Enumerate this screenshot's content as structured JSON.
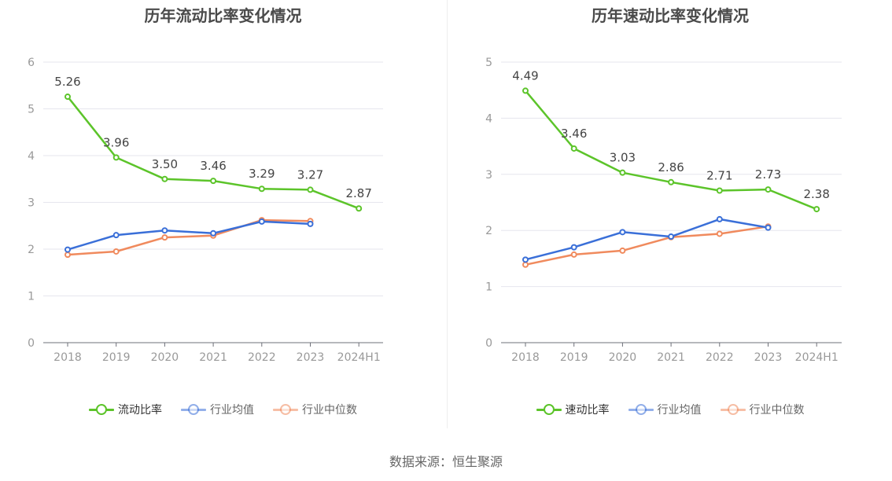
{
  "source": "数据来源：恒生聚源",
  "colors": {
    "main": "#5cc42a",
    "avg": "#3a6fd8",
    "median": "#f08a5d"
  },
  "chart_data": [
    {
      "type": "line",
      "title": "历年流动比率变化情况",
      "categories": [
        "2018",
        "2019",
        "2020",
        "2021",
        "2022",
        "2023",
        "2024H1"
      ],
      "ylim": [
        0,
        6
      ],
      "yticks": [
        0,
        1,
        2,
        3,
        4,
        5,
        6
      ],
      "grid": true,
      "legend_position": "bottom",
      "series": [
        {
          "name": "流动比率",
          "color": "#5cc42a",
          "labeled": true,
          "values": [
            5.26,
            3.96,
            3.5,
            3.46,
            3.29,
            3.27,
            2.87
          ],
          "labels": [
            "5.26",
            "3.96",
            "3.50",
            "3.46",
            "3.29",
            "3.27",
            "2.87"
          ]
        },
        {
          "name": "行业均值",
          "color": "#3a6fd8",
          "labeled": false,
          "values": [
            1.99,
            2.3,
            2.4,
            2.34,
            2.59,
            2.54,
            null
          ]
        },
        {
          "name": "行业中位数",
          "color": "#f08a5d",
          "labeled": false,
          "values": [
            1.88,
            1.95,
            2.25,
            2.29,
            2.62,
            2.6,
            null
          ]
        }
      ]
    },
    {
      "type": "line",
      "title": "历年速动比率变化情况",
      "categories": [
        "2018",
        "2019",
        "2020",
        "2021",
        "2022",
        "2023",
        "2024H1"
      ],
      "ylim": [
        0,
        5
      ],
      "yticks": [
        0,
        1,
        2,
        3,
        4,
        5
      ],
      "grid": true,
      "legend_position": "bottom",
      "series": [
        {
          "name": "速动比率",
          "color": "#5cc42a",
          "labeled": true,
          "values": [
            4.49,
            3.46,
            3.03,
            2.86,
            2.71,
            2.73,
            2.38
          ],
          "labels": [
            "4.49",
            "3.46",
            "3.03",
            "2.86",
            "2.71",
            "2.73",
            "2.38"
          ]
        },
        {
          "name": "行业均值",
          "color": "#3a6fd8",
          "labeled": false,
          "values": [
            1.48,
            1.7,
            1.97,
            1.89,
            2.2,
            2.05,
            null
          ]
        },
        {
          "name": "行业中位数",
          "color": "#f08a5d",
          "labeled": false,
          "values": [
            1.39,
            1.57,
            1.64,
            1.88,
            1.94,
            2.07,
            null
          ]
        }
      ]
    }
  ]
}
